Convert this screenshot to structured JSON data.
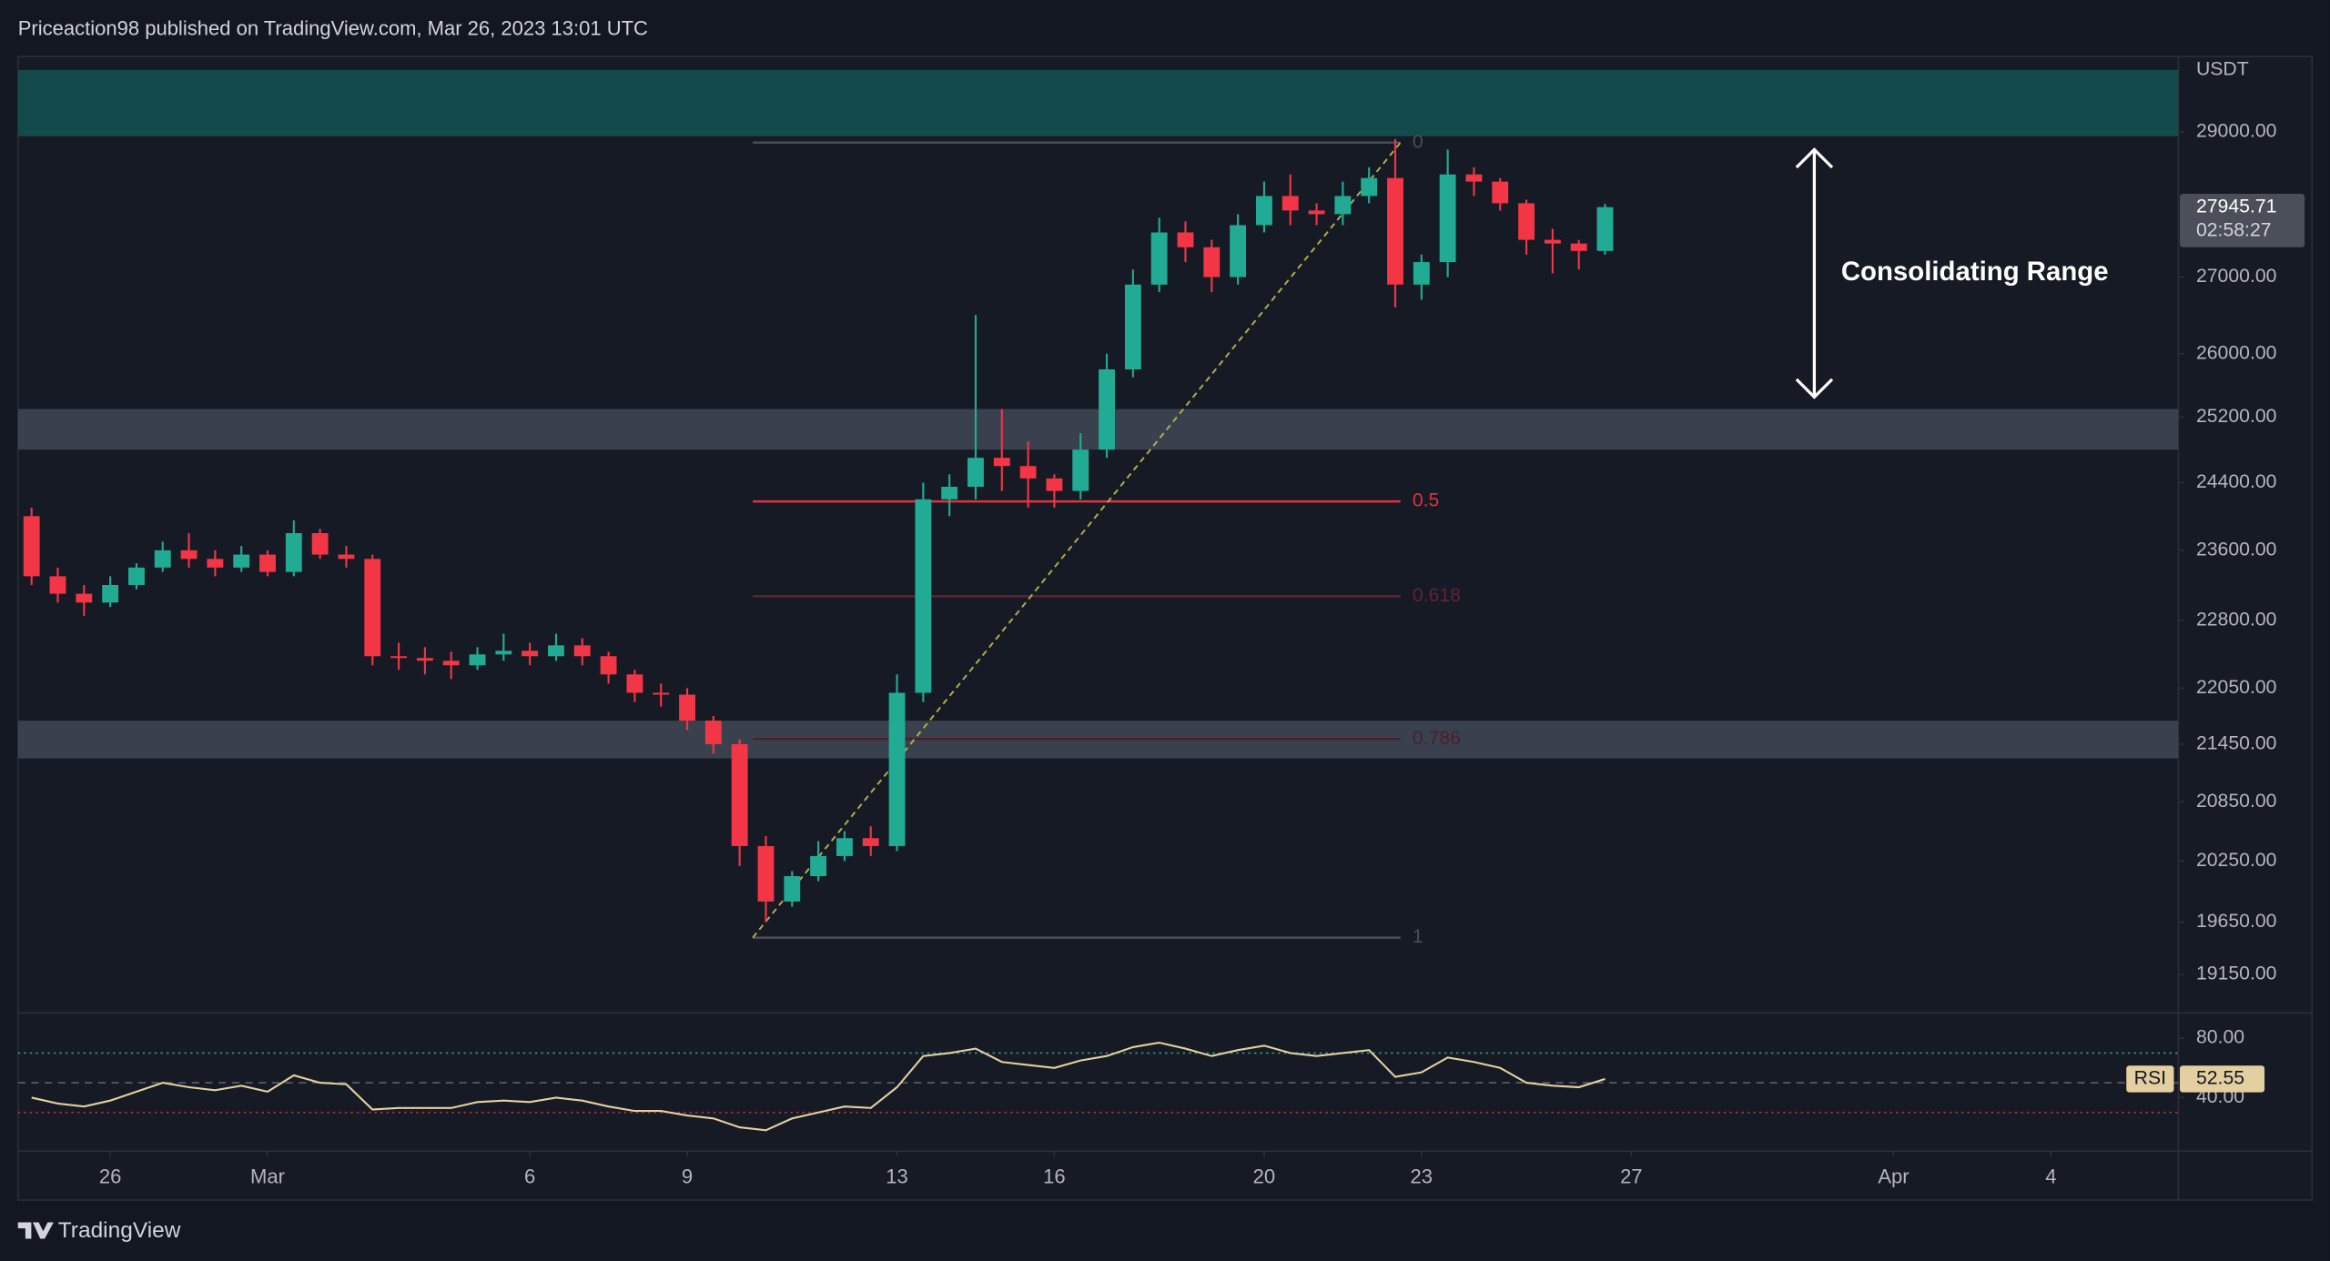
{
  "header": "Priceaction98 published on TradingView.com, Mar 26, 2023 13:01 UTC",
  "footer": "TradingView",
  "chart_data": {
    "type": "candlestick",
    "currency": "USDT",
    "x": [
      -1.5,
      -1,
      -0.5,
      0,
      0.5,
      1,
      1.5,
      2,
      2.5,
      3,
      3.5,
      4,
      4.5,
      5,
      5.5,
      6,
      6.5,
      7,
      7.5,
      8,
      8.5,
      9,
      9.5,
      10,
      10.5,
      11,
      11.5,
      12,
      12.5,
      13,
      13.5,
      14,
      14.5,
      15,
      15.5,
      16,
      16.5,
      17,
      17.5,
      18,
      18.5,
      19,
      19.5,
      20,
      20.5,
      21,
      21.5,
      22,
      22.5,
      23,
      23.5,
      24,
      24.5,
      25,
      25.5,
      26,
      26.5,
      27,
      27.5,
      28,
      28.5
    ],
    "open": [
      24000,
      23300,
      23100,
      23000,
      23200,
      23400,
      23600,
      23500,
      23400,
      23550,
      23350,
      23800,
      23550,
      23500,
      22400,
      22380,
      22350,
      22300,
      22420,
      22460,
      22400,
      22520,
      22400,
      22200,
      22000,
      21980,
      21700,
      21450,
      20400,
      19850,
      20100,
      20300,
      20480,
      20400,
      22000,
      24200,
      24350,
      24700,
      24600,
      24450,
      24300,
      24800,
      25800,
      26900,
      27600,
      27400,
      27000,
      27700,
      28100,
      27900,
      27850,
      28100,
      28350,
      26900,
      27200,
      28400,
      28300,
      28000,
      27500,
      27450,
      27350
    ],
    "high": [
      24100,
      23400,
      23200,
      23300,
      23450,
      23700,
      23800,
      23600,
      23650,
      23600,
      23950,
      23850,
      23650,
      23550,
      22550,
      22500,
      22450,
      22500,
      22650,
      22550,
      22650,
      22600,
      22450,
      22250,
      22100,
      22050,
      21750,
      21500,
      20500,
      20150,
      20450,
      20550,
      20600,
      22200,
      24400,
      24500,
      26500,
      25300,
      24900,
      24500,
      25000,
      26000,
      27100,
      27800,
      27750,
      27500,
      27850,
      28300,
      28400,
      28000,
      28300,
      28500,
      28900,
      27300,
      28750,
      28500,
      28350,
      28050,
      27650,
      27500,
      27990
    ],
    "low": [
      23200,
      23000,
      22850,
      22950,
      23150,
      23350,
      23400,
      23300,
      23350,
      23300,
      23300,
      23500,
      23400,
      22300,
      22250,
      22200,
      22150,
      22250,
      22350,
      22300,
      22350,
      22300,
      22100,
      21900,
      21850,
      21600,
      21350,
      20200,
      19650,
      19800,
      20050,
      20250,
      20300,
      20350,
      21900,
      24000,
      24200,
      24300,
      24100,
      24100,
      24200,
      24700,
      25700,
      26800,
      27200,
      26800,
      26900,
      27600,
      27700,
      27700,
      27700,
      28000,
      26600,
      26700,
      27000,
      28100,
      27900,
      27300,
      27050,
      27100,
      27300
    ],
    "close": [
      23300,
      23100,
      23000,
      23200,
      23400,
      23600,
      23500,
      23400,
      23550,
      23350,
      23800,
      23550,
      23500,
      22400,
      22380,
      22350,
      22300,
      22420,
      22460,
      22400,
      22520,
      22400,
      22200,
      22000,
      21980,
      21700,
      21450,
      20400,
      19850,
      20100,
      20300,
      20480,
      20400,
      22000,
      24200,
      24350,
      24700,
      24600,
      24450,
      24300,
      24800,
      25800,
      26900,
      27600,
      27400,
      27000,
      27700,
      28100,
      27900,
      27850,
      28100,
      28350,
      26900,
      27200,
      28400,
      28300,
      28000,
      27500,
      27450,
      27350,
      27945.71
    ],
    "up_color": "#22ab94",
    "down_color": "#f23645",
    "countdown": "02:58:27",
    "xlim": [
      -1.76,
      39.43
    ],
    "xticks": [
      {
        "value": 0,
        "label": "26"
      },
      {
        "value": 3,
        "label": "Mar"
      },
      {
        "value": 8,
        "label": "6"
      },
      {
        "value": 11,
        "label": "9"
      },
      {
        "value": 15,
        "label": "13"
      },
      {
        "value": 18,
        "label": "16"
      },
      {
        "value": 22,
        "label": "20"
      },
      {
        "value": 25,
        "label": "23"
      },
      {
        "value": 29,
        "label": "27"
      },
      {
        "value": 34,
        "label": "Apr"
      },
      {
        "value": 37,
        "label": "4"
      }
    ],
    "ylim": [
      18790,
      30100
    ],
    "log_scale": true,
    "yticks": [
      {
        "value": 29000,
        "label": "29000.00"
      },
      {
        "value": 27000,
        "label": "27000.00"
      },
      {
        "value": 26000,
        "label": "26000.00"
      },
      {
        "value": 25200,
        "label": "25200.00"
      },
      {
        "value": 24400,
        "label": "24400.00"
      },
      {
        "value": 23600,
        "label": "23600.00"
      },
      {
        "value": 22800,
        "label": "22800.00"
      },
      {
        "value": 22050,
        "label": "22050.00"
      },
      {
        "value": 21450,
        "label": "21450.00"
      },
      {
        "value": 20850,
        "label": "20850.00"
      },
      {
        "value": 20250,
        "label": "20250.00"
      },
      {
        "value": 19650,
        "label": "19650.00"
      },
      {
        "value": 19150,
        "label": "19150.00"
      }
    ],
    "zones": [
      {
        "from": 28940,
        "to": 29900,
        "color": "#134a4c"
      },
      {
        "from": 24800,
        "to": 25300,
        "color": "#3a414e"
      },
      {
        "from": 21300,
        "to": 21700,
        "color": "#3a414e"
      }
    ],
    "fib": {
      "x": [
        12.25,
        24.6
      ],
      "levels": [
        {
          "label": "0",
          "value": 28850,
          "color": "#4a4e59"
        },
        {
          "label": "0.5",
          "value": 24175,
          "color": "#e0323f"
        },
        {
          "label": "0.618",
          "value": 23072,
          "color": "#5e2530"
        },
        {
          "label": "0.786",
          "value": 21505,
          "color": "#4a2128"
        },
        {
          "label": "1",
          "value": 19500,
          "color": "#4a4e59"
        }
      ],
      "trend_color": "#b5ad48"
    },
    "annotation": {
      "text": "Consolidating Range",
      "range": [
        25450,
        28750
      ]
    },
    "rsi": {
      "name": "RSI",
      "color": "#e3cf9f",
      "values": [
        40,
        36,
        34,
        38,
        44,
        50,
        47,
        45,
        48,
        44,
        55,
        50,
        49,
        32,
        33,
        33,
        33,
        37,
        38,
        37,
        40,
        38,
        34,
        31,
        31,
        28,
        26,
        20,
        18,
        26,
        30,
        34,
        33,
        47,
        68,
        70,
        73,
        64,
        62,
        60,
        65,
        68,
        74,
        77,
        73,
        68,
        72,
        75,
        70,
        68,
        70,
        72,
        54,
        57,
        67,
        64,
        60,
        50,
        48,
        47,
        52.55
      ],
      "ylim": [
        4,
        97
      ],
      "yticks": [
        {
          "value": 80,
          "label": "80.00"
        },
        {
          "value": 40,
          "label": "40.00"
        }
      ],
      "levels": [
        {
          "value": 70,
          "color": "#2a9d8f"
        },
        {
          "value": 50,
          "color": "#5d606b"
        },
        {
          "value": 30,
          "color": "#a8323d"
        }
      ]
    }
  }
}
